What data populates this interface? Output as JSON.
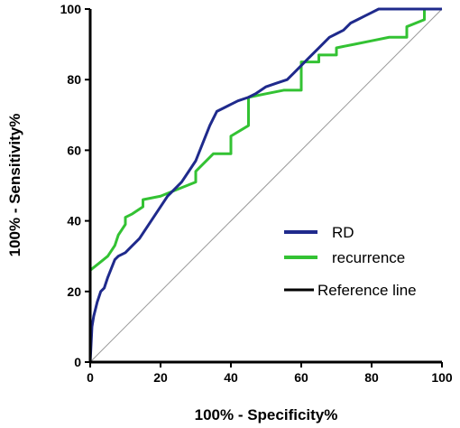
{
  "chart_data": {
    "type": "line",
    "xlabel": "100% - Specificity%",
    "ylabel": "100% - Sensitivity%",
    "xlim": [
      0,
      100
    ],
    "ylim": [
      0,
      100
    ],
    "x_ticks": [
      0,
      20,
      40,
      60,
      80,
      100
    ],
    "y_ticks": [
      0,
      20,
      40,
      60,
      80,
      100
    ],
    "grid": false,
    "legend_position": "bottom-right",
    "series": [
      {
        "name": "RD",
        "color": "#1f2a8c",
        "x": [
          0,
          0.5,
          1,
          1.5,
          2,
          3,
          4,
          5,
          7,
          8,
          10,
          12,
          14,
          16,
          18,
          20,
          22,
          24,
          26,
          28,
          30,
          32,
          34,
          36,
          38,
          40,
          42,
          45,
          47,
          50,
          53,
          56,
          58,
          60,
          62,
          65,
          68,
          70,
          72,
          74,
          76,
          78,
          80,
          82,
          85,
          90,
          95,
          100
        ],
        "y": [
          0,
          10,
          13,
          15,
          17,
          20,
          21,
          24,
          29,
          30,
          31,
          33,
          35,
          38,
          41,
          44,
          47,
          49,
          51,
          54,
          57,
          62,
          67,
          71,
          72,
          73,
          74,
          75,
          76,
          78,
          79,
          80,
          82,
          84,
          86,
          89,
          92,
          93,
          94,
          96,
          97,
          98,
          99,
          100,
          100,
          100,
          100,
          100
        ]
      },
      {
        "name": "recurrence",
        "color": "#33c233",
        "x": [
          0,
          0,
          2.5,
          5,
          7,
          8,
          10,
          10,
          12,
          15,
          15,
          20,
          25,
          30,
          30,
          35,
          40,
          40,
          45,
          45,
          50,
          55,
          60,
          60,
          65,
          65,
          70,
          70,
          75,
          80,
          85,
          90,
          90,
          95,
          95,
          100
        ],
        "y": [
          0,
          26,
          28,
          30,
          33,
          36,
          39,
          41,
          42,
          44,
          46,
          47,
          49,
          51,
          54,
          59,
          59,
          64,
          67,
          75,
          76,
          77,
          77,
          85,
          85,
          87,
          87,
          89,
          90,
          91,
          92,
          92,
          95,
          97,
          100,
          100
        ]
      },
      {
        "name": "Reference line",
        "color": "#999999",
        "x": [
          0,
          100
        ],
        "y": [
          0,
          100
        ]
      }
    ],
    "legend": [
      {
        "label": "RD",
        "color": "#1f2a8c"
      },
      {
        "label": "recurrence",
        "color": "#33c233"
      },
      {
        "label": "Reference line",
        "color": "#000000"
      }
    ]
  }
}
